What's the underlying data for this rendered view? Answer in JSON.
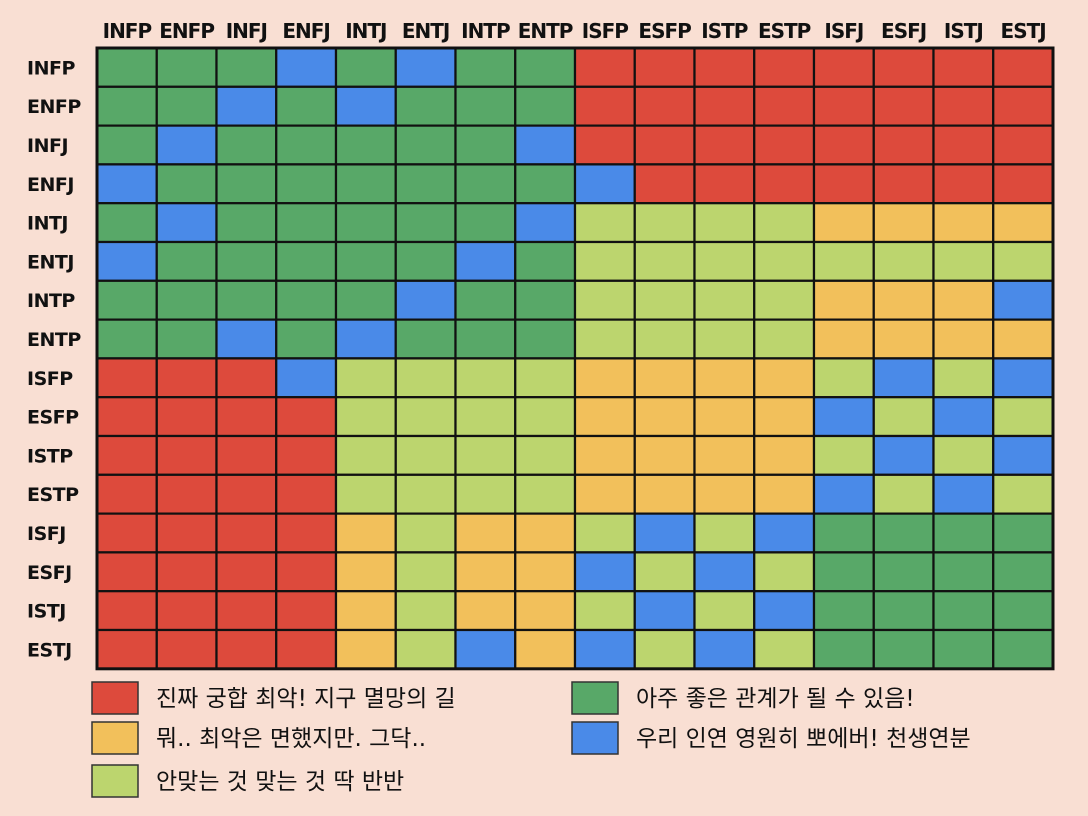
{
  "chart_data": {
    "type": "heatmap",
    "x_labels": [
      "INFP",
      "ENFP",
      "INFJ",
      "ENFJ",
      "INTJ",
      "ENTJ",
      "INTP",
      "ENTP",
      "ISFP",
      "ESFP",
      "ISTP",
      "ESTP",
      "ISFJ",
      "ESFJ",
      "ISTJ",
      "ESTJ"
    ],
    "y_labels": [
      "INFP",
      "ENFP",
      "INFJ",
      "ENFJ",
      "INTJ",
      "ENTJ",
      "INTP",
      "ENTP",
      "ISFP",
      "ESFP",
      "ISTP",
      "ESTP",
      "ISFJ",
      "ESFJ",
      "ISTJ",
      "ESTJ"
    ],
    "categories": {
      "R": {
        "label": "진짜 궁합 최악! 지구 멸망의 길",
        "color": "#dd4a3c"
      },
      "O": {
        "label": "뭐.. 최악은 면했지만. 그닥..",
        "color": "#f2c05b"
      },
      "L": {
        "label": "안맞는 것 맞는 것 딱 반반",
        "color": "#bcd56e"
      },
      "G": {
        "label": "아주 좋은 관계가 될 수 있음!",
        "color": "#58a868"
      },
      "B": {
        "label": "우리 인연 영원히 뽀에버! 천생연분",
        "color": "#4a8ae8"
      }
    },
    "legend_order": [
      "R",
      "G",
      "O",
      "B",
      "L"
    ],
    "matrix": [
      [
        "G",
        "G",
        "G",
        "B",
        "G",
        "B",
        "G",
        "G",
        "R",
        "R",
        "R",
        "R",
        "R",
        "R",
        "R",
        "R"
      ],
      [
        "G",
        "G",
        "B",
        "G",
        "B",
        "G",
        "G",
        "G",
        "R",
        "R",
        "R",
        "R",
        "R",
        "R",
        "R",
        "R"
      ],
      [
        "G",
        "B",
        "G",
        "G",
        "G",
        "G",
        "G",
        "B",
        "R",
        "R",
        "R",
        "R",
        "R",
        "R",
        "R",
        "R"
      ],
      [
        "B",
        "G",
        "G",
        "G",
        "G",
        "G",
        "G",
        "G",
        "B",
        "R",
        "R",
        "R",
        "R",
        "R",
        "R",
        "R"
      ],
      [
        "G",
        "B",
        "G",
        "G",
        "G",
        "G",
        "G",
        "B",
        "L",
        "L",
        "L",
        "L",
        "O",
        "O",
        "O",
        "O"
      ],
      [
        "B",
        "G",
        "G",
        "G",
        "G",
        "G",
        "B",
        "G",
        "L",
        "L",
        "L",
        "L",
        "L",
        "L",
        "L",
        "L"
      ],
      [
        "G",
        "G",
        "G",
        "G",
        "G",
        "B",
        "G",
        "G",
        "L",
        "L",
        "L",
        "L",
        "O",
        "O",
        "O",
        "B"
      ],
      [
        "G",
        "G",
        "B",
        "G",
        "B",
        "G",
        "G",
        "G",
        "L",
        "L",
        "L",
        "L",
        "O",
        "O",
        "O",
        "O"
      ],
      [
        "R",
        "R",
        "R",
        "B",
        "L",
        "L",
        "L",
        "L",
        "O",
        "O",
        "O",
        "O",
        "L",
        "B",
        "L",
        "B"
      ],
      [
        "R",
        "R",
        "R",
        "R",
        "L",
        "L",
        "L",
        "L",
        "O",
        "O",
        "O",
        "O",
        "B",
        "L",
        "B",
        "L"
      ],
      [
        "R",
        "R",
        "R",
        "R",
        "L",
        "L",
        "L",
        "L",
        "O",
        "O",
        "O",
        "O",
        "L",
        "B",
        "L",
        "B"
      ],
      [
        "R",
        "R",
        "R",
        "R",
        "L",
        "L",
        "L",
        "L",
        "O",
        "O",
        "O",
        "O",
        "B",
        "L",
        "B",
        "L"
      ],
      [
        "R",
        "R",
        "R",
        "R",
        "O",
        "L",
        "O",
        "O",
        "L",
        "B",
        "L",
        "B",
        "G",
        "G",
        "G",
        "G"
      ],
      [
        "R",
        "R",
        "R",
        "R",
        "O",
        "L",
        "O",
        "O",
        "B",
        "L",
        "B",
        "L",
        "G",
        "G",
        "G",
        "G"
      ],
      [
        "R",
        "R",
        "R",
        "R",
        "O",
        "L",
        "O",
        "O",
        "L",
        "B",
        "L",
        "B",
        "G",
        "G",
        "G",
        "G"
      ],
      [
        "R",
        "R",
        "R",
        "R",
        "O",
        "L",
        "B",
        "O",
        "B",
        "L",
        "B",
        "L",
        "G",
        "G",
        "G",
        "G"
      ]
    ]
  }
}
